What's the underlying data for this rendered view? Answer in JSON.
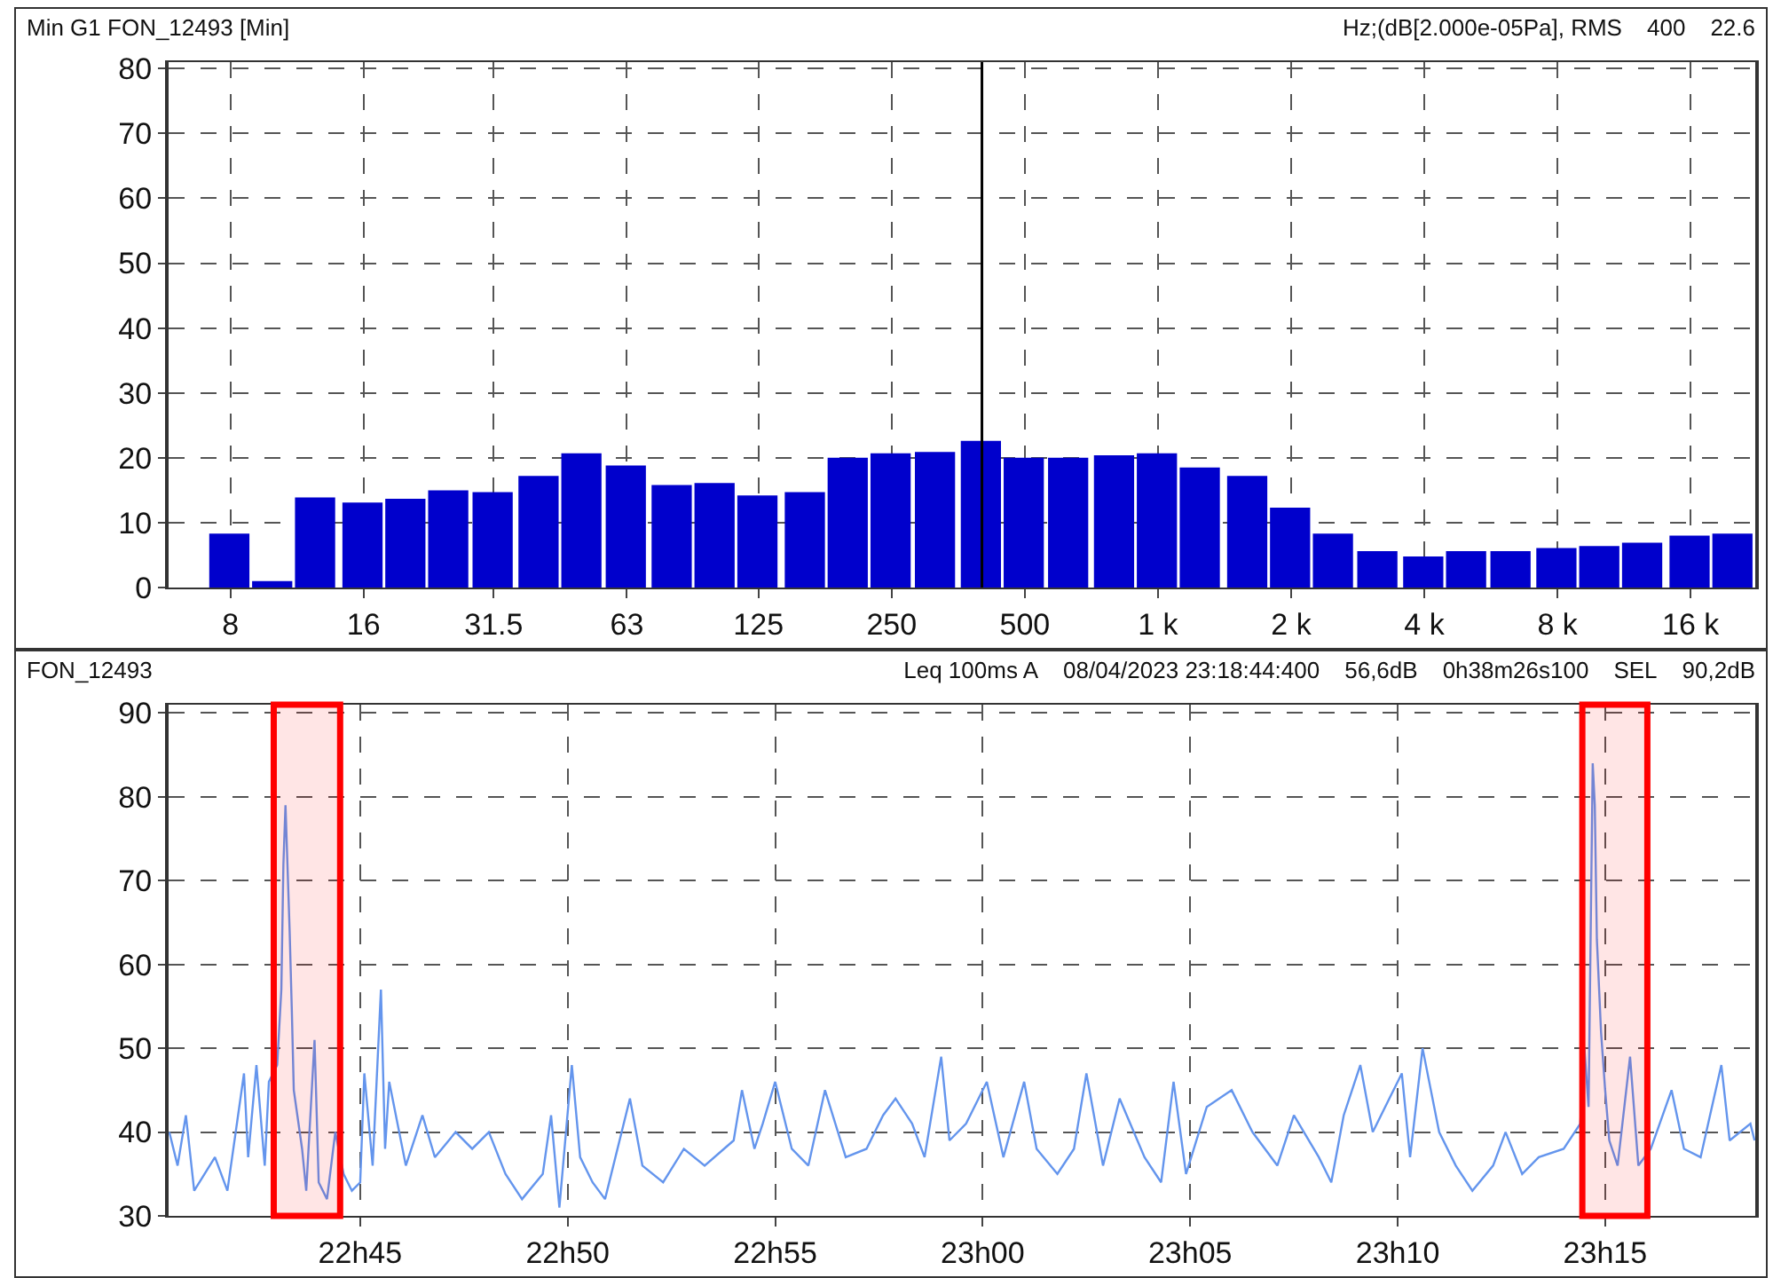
{
  "chart_data": [
    {
      "type": "bar",
      "title": "Min G1 FON_12493 [Min]",
      "annotations": [
        "Hz;(dB[2.000e-05Pa], RMS",
        "400",
        "22.6"
      ],
      "x": [
        8,
        10,
        12.5,
        16,
        20,
        25,
        31.5,
        40,
        50,
        63,
        80,
        100,
        125,
        160,
        200,
        250,
        315,
        400,
        500,
        630,
        800,
        1000,
        1250,
        1600,
        2000,
        2500,
        3150,
        4000,
        5000,
        6300,
        8000,
        10000,
        12500,
        16000,
        20000
      ],
      "values": [
        8.3,
        1.0,
        13.9,
        13.1,
        13.7,
        15.0,
        14.7,
        17.2,
        20.7,
        18.8,
        15.8,
        16.1,
        14.2,
        14.7,
        20.0,
        20.7,
        20.9,
        22.6,
        20.0,
        20.0,
        20.4,
        20.7,
        18.5,
        17.2,
        12.3,
        8.3,
        5.6,
        4.8,
        5.6,
        5.6,
        6.1,
        6.4,
        6.9,
        8.0,
        8.3
      ],
      "color": "#0000cc",
      "log": "x",
      "xlim": [
        5.8,
        22400
      ],
      "xticks": [
        8,
        16,
        31.5,
        63,
        125,
        250,
        500,
        {
          "value": 1000,
          "label": "1 k"
        },
        {
          "value": 2000,
          "label": "2 k"
        },
        {
          "value": 4000,
          "label": "4 k"
        },
        {
          "value": 8000,
          "label": "8 k"
        },
        {
          "value": 16000,
          "label": "16 k"
        }
      ],
      "ylim": [
        0,
        81
      ],
      "yticks": [
        0,
        10,
        20,
        30,
        40,
        50,
        60,
        70,
        80
      ],
      "grid": true,
      "ref_lines": [
        {
          "axis": "x",
          "value": 400,
          "color": "#000000"
        }
      ]
    },
    {
      "type": "line",
      "title": "FON_12493",
      "annotations": [
        "Leq 100ms A",
        "08/04/2023 23:18:44:400",
        "56,6dB",
        "0h38m26s100",
        "SEL",
        "90,2dB"
      ],
      "x": [
        "2023-04-08T22:40:24",
        "2023-04-08T22:40:36",
        "2023-04-08T22:40:48",
        "2023-04-08T22:41:00",
        "2023-04-08T22:41:30",
        "2023-04-08T22:41:48",
        "2023-04-08T22:42:12",
        "2023-04-08T22:42:18",
        "2023-04-08T22:42:30",
        "2023-04-08T22:42:42",
        "2023-04-08T22:42:48",
        "2023-04-08T22:43:00",
        "2023-04-08T22:43:06",
        "2023-04-08T22:43:09",
        "2023-04-08T22:43:12",
        "2023-04-08T22:43:18",
        "2023-04-08T22:43:21",
        "2023-04-08T22:43:24",
        "2023-04-08T22:43:36",
        "2023-04-08T22:43:42",
        "2023-04-08T22:43:54",
        "2023-04-08T22:44:00",
        "2023-04-08T22:44:12",
        "2023-04-08T22:44:24",
        "2023-04-08T22:44:36",
        "2023-04-08T22:44:48",
        "2023-04-08T22:45:00",
        "2023-04-08T22:45:06",
        "2023-04-08T22:45:18",
        "2023-04-08T22:45:30",
        "2023-04-08T22:45:36",
        "2023-04-08T22:45:42",
        "2023-04-08T22:46:06",
        "2023-04-08T22:46:30",
        "2023-04-08T22:46:48",
        "2023-04-08T22:47:18",
        "2023-04-08T22:47:42",
        "2023-04-08T22:48:06",
        "2023-04-08T22:48:30",
        "2023-04-08T22:48:54",
        "2023-04-08T22:49:24",
        "2023-04-08T22:49:36",
        "2023-04-08T22:49:48",
        "2023-04-08T22:50:06",
        "2023-04-08T22:50:18",
        "2023-04-08T22:50:36",
        "2023-04-08T22:50:54",
        "2023-04-08T22:51:30",
        "2023-04-08T22:51:48",
        "2023-04-08T22:52:18",
        "2023-04-08T22:52:48",
        "2023-04-08T22:53:18",
        "2023-04-08T22:54:00",
        "2023-04-08T22:54:12",
        "2023-04-08T22:54:30",
        "2023-04-08T22:54:42",
        "2023-04-08T22:55:00",
        "2023-04-08T22:55:24",
        "2023-04-08T22:55:48",
        "2023-04-08T22:56:12",
        "2023-04-08T22:56:42",
        "2023-04-08T22:57:12",
        "2023-04-08T22:57:36",
        "2023-04-08T22:57:54",
        "2023-04-08T22:58:18",
        "2023-04-08T22:58:36",
        "2023-04-08T22:59:00",
        "2023-04-08T22:59:12",
        "2023-04-08T22:59:36",
        "2023-04-08T23:00:06",
        "2023-04-08T23:00:30",
        "2023-04-08T23:01:00",
        "2023-04-08T23:01:18",
        "2023-04-08T23:01:48",
        "2023-04-08T23:02:12",
        "2023-04-08T23:02:30",
        "2023-04-08T23:02:54",
        "2023-04-08T23:03:18",
        "2023-04-08T23:03:54",
        "2023-04-08T23:04:18",
        "2023-04-08T23:04:36",
        "2023-04-08T23:04:54",
        "2023-04-08T23:05:24",
        "2023-04-08T23:06:00",
        "2023-04-08T23:06:30",
        "2023-04-08T23:07:06",
        "2023-04-08T23:07:30",
        "2023-04-08T23:08:06",
        "2023-04-08T23:08:24",
        "2023-04-08T23:08:42",
        "2023-04-08T23:09:06",
        "2023-04-08T23:09:24",
        "2023-04-08T23:09:48",
        "2023-04-08T23:10:06",
        "2023-04-08T23:10:18",
        "2023-04-08T23:10:36",
        "2023-04-08T23:11:00",
        "2023-04-08T23:11:24",
        "2023-04-08T23:11:48",
        "2023-04-08T23:12:18",
        "2023-04-08T23:12:36",
        "2023-04-08T23:13:00",
        "2023-04-08T23:13:24",
        "2023-04-08T23:14:00",
        "2023-04-08T23:14:24",
        "2023-04-08T23:14:30",
        "2023-04-08T23:14:36",
        "2023-04-08T23:14:42",
        "2023-04-08T23:14:45",
        "2023-04-08T23:14:48",
        "2023-04-08T23:14:54",
        "2023-04-08T23:15:00",
        "2023-04-08T23:15:06",
        "2023-04-08T23:15:18",
        "2023-04-08T23:15:36",
        "2023-04-08T23:15:48",
        "2023-04-08T23:16:06",
        "2023-04-08T23:16:36",
        "2023-04-08T23:16:54",
        "2023-04-08T23:17:18",
        "2023-04-08T23:17:48",
        "2023-04-08T23:18:00",
        "2023-04-08T23:18:30",
        "2023-04-08T23:18:36"
      ],
      "values": [
        40,
        36,
        42,
        33,
        37,
        33,
        47,
        37,
        48,
        36,
        46,
        48,
        57,
        72,
        79,
        64,
        55,
        45,
        38,
        33,
        51,
        34,
        32,
        40,
        35,
        33,
        34,
        47,
        36,
        57,
        38,
        46,
        36,
        42,
        37,
        40,
        38,
        40,
        35,
        32,
        35,
        42,
        31,
        48,
        37,
        34,
        32,
        44,
        36,
        34,
        38,
        36,
        39,
        45,
        38,
        41,
        46,
        38,
        36,
        45,
        37,
        38,
        42,
        44,
        41,
        37,
        49,
        39,
        41,
        46,
        37,
        46,
        38,
        35,
        38,
        47,
        36,
        44,
        37,
        34,
        46,
        35,
        43,
        45,
        40,
        36,
        42,
        37,
        34,
        42,
        48,
        40,
        44,
        47,
        37,
        50,
        40,
        36,
        33,
        36,
        40,
        35,
        37,
        38,
        41,
        50,
        43,
        84,
        79,
        63,
        52,
        45,
        39,
        36,
        49,
        36,
        38,
        45,
        38,
        37,
        48,
        39,
        41,
        39
      ],
      "color": "#6495ed",
      "xlim": [
        "2023-04-08T22:40:23",
        "2023-04-08T23:18:37"
      ],
      "xticks": [
        {
          "value": "2023-04-08T22:45",
          "label": "22h45"
        },
        {
          "value": "2023-04-08T22:50",
          "label": "22h50"
        },
        {
          "value": "2023-04-08T22:55",
          "label": "22h55"
        },
        {
          "value": "2023-04-08T23:00",
          "label": "23h00"
        },
        {
          "value": "2023-04-08T23:05",
          "label": "23h05"
        },
        {
          "value": "2023-04-08T23:10",
          "label": "23h10"
        },
        {
          "value": "2023-04-08T23:15",
          "label": "23h15"
        }
      ],
      "ylim": [
        30,
        91
      ],
      "yticks": [
        30,
        40,
        50,
        60,
        70,
        80,
        90
      ],
      "grid": true,
      "bands": [
        {
          "axis": "x",
          "from": "2023-04-08T22:42:55",
          "to": "2023-04-08T22:44:31",
          "color": "#ff0000"
        },
        {
          "axis": "x",
          "from": "2023-04-08T23:14:27",
          "to": "2023-04-08T23:16:01",
          "color": "#ff0000"
        }
      ]
    }
  ]
}
